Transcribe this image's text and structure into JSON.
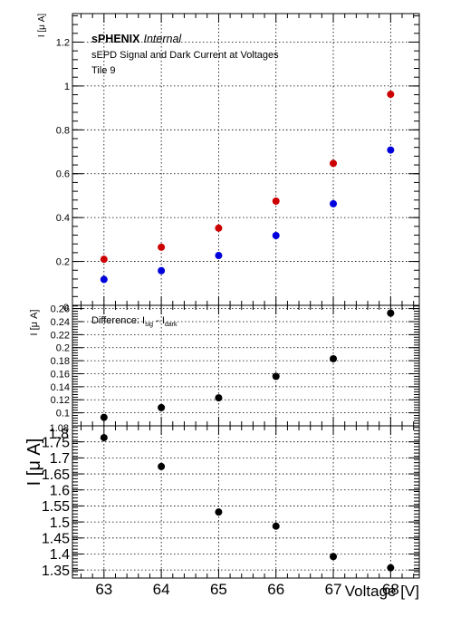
{
  "colors": {
    "signal": "#cc0000",
    "dark": "#0000dd",
    "difference": "#000000",
    "ratio": "#000000",
    "grid": "#000000",
    "axis": "#000000"
  },
  "header": {
    "brand": "sPHENIX",
    "status": "Internal",
    "line1": "sEPD Signal and Dark Current at Voltages",
    "line2": "Tile 9"
  },
  "chart_data": [
    {
      "type": "scatter",
      "ylabel": "I [μ A]",
      "ylim": [
        0,
        1.33
      ],
      "y_ticks": [
        "0.2",
        "0.4",
        "0.6",
        "0.8",
        "1",
        "1.2"
      ],
      "grid": true,
      "series": [
        {
          "color": "#cc0000",
          "x": [
            63,
            64,
            65,
            66,
            67,
            68
          ],
          "y": [
            0.21,
            0.265,
            0.352,
            0.475,
            0.647,
            0.962
          ]
        },
        {
          "color": "#0000dd",
          "x": [
            63,
            64,
            65,
            66,
            67,
            68
          ],
          "y": [
            0.118,
            0.158,
            0.227,
            0.318,
            0.463,
            0.708
          ]
        }
      ]
    },
    {
      "type": "scatter",
      "ylabel": "I [μ A]",
      "annotation": {
        "prefix": "Difference: I",
        "sub1": "sig",
        "mid": " - I",
        "sub2": "dark"
      },
      "ylim": [
        0.08,
        0.265
      ],
      "y_ticks": [
        "0.1",
        "0.12",
        "0.14",
        "0.16",
        "0.18",
        "0.2",
        "0.22",
        "0.24",
        "0.26"
      ],
      "grid": true,
      "series": [
        {
          "color": "#000000",
          "x": [
            63,
            64,
            65,
            66,
            67,
            68
          ],
          "y": [
            0.093,
            0.108,
            0.123,
            0.156,
            0.183,
            0.253
          ]
        }
      ]
    },
    {
      "type": "scatter",
      "ylabel": "I [μ A]",
      "xlabel": "Voltage [V]",
      "ylim": [
        1.325,
        1.8
      ],
      "y_ticks": [
        "1.35",
        "1.4",
        "1.45",
        "1.5",
        "1.55",
        "1.6",
        "1.65",
        "1.7",
        "1.75"
      ],
      "x_ticks": [
        "63",
        "64",
        "65",
        "66",
        "67",
        "68"
      ],
      "xlim": [
        62.45,
        68.5
      ],
      "grid": true,
      "series": [
        {
          "color": "#000000",
          "x": [
            63,
            64,
            65,
            66,
            67,
            68
          ],
          "y": [
            1.763,
            1.673,
            1.531,
            1.487,
            1.392,
            1.357
          ]
        }
      ]
    }
  ],
  "cut_labels": {
    "panel1_bottom": "0",
    "panel2_bottom": "1.08",
    "panel3_top": "1.8"
  }
}
